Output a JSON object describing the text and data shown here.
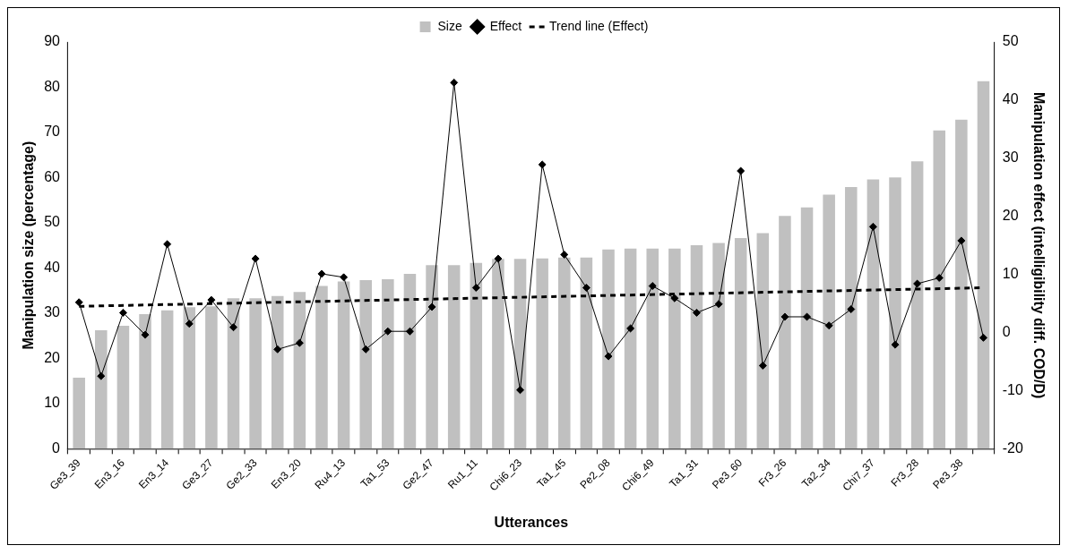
{
  "chart_data": {
    "type": "bar",
    "xlabel": "Utterances",
    "ylabel": "Manipulation size (percentage)",
    "y2label": "Manipulation effect (intelligibility diff. COD/D)",
    "categories": [
      "Ge3_39",
      null,
      "En3_16",
      null,
      "En3_14",
      null,
      "Ge3_27",
      null,
      "Ge2_33",
      null,
      "En3_20",
      null,
      "Ru4_13",
      null,
      "Ta1_53",
      null,
      "Ge2_47",
      null,
      "Ru1_11",
      null,
      "Chi6_23",
      null,
      "Ta1_45",
      null,
      "Pe2_08",
      null,
      "Chi6_49",
      null,
      "Ta1_31",
      null,
      "Pe3_60",
      null,
      "Fr3_26",
      null,
      "Ta2_34",
      null,
      "Chi7_37",
      null,
      "Fr3_28",
      null,
      "Pe3_38",
      null
    ],
    "series": [
      {
        "name": "Size",
        "type": "bar",
        "color": "#c0c0c0",
        "values": [
          15.7,
          26.2,
          27.2,
          29.8,
          30.6,
          31.3,
          31.5,
          33.3,
          33.3,
          33.8,
          34.7,
          36.0,
          37.0,
          37.3,
          37.5,
          38.7,
          40.6,
          40.6,
          41.1,
          42.0,
          42.0,
          42.1,
          42.3,
          42.3,
          44.1,
          44.3,
          44.3,
          44.3,
          45.0,
          45.5,
          46.6,
          47.7,
          51.5,
          53.4,
          56.2,
          57.9,
          59.6,
          60.0,
          63.6,
          70.4,
          72.8,
          81.3
        ]
      },
      {
        "name": "Effect",
        "type": "line",
        "axis": "y2",
        "color": "#000000",
        "marker": "diamond",
        "line_style": "solid",
        "values": [
          5.2,
          -7.5,
          3.4,
          -0.4,
          15.2,
          1.5,
          5.6,
          0.9,
          12.7,
          -2.9,
          -1.8,
          10.1,
          9.5,
          -2.9,
          0.2,
          0.2,
          4.4,
          43.0,
          7.7,
          12.7,
          -9.9,
          28.9,
          13.4,
          7.7,
          -4.1,
          0.7,
          8.0,
          5.9,
          3.4,
          4.9,
          27.8,
          -5.7,
          2.7,
          2.7,
          1.2,
          4.0,
          18.2,
          -2.1,
          8.4,
          9.4,
          15.8,
          -0.9
        ]
      },
      {
        "name": "Trend line (Effect)",
        "type": "line",
        "axis": "y2",
        "color": "#000000",
        "marker": "none",
        "line_style": "dashed",
        "values": [
          4.5,
          null,
          null,
          null,
          null,
          null,
          null,
          null,
          null,
          null,
          null,
          null,
          null,
          null,
          null,
          null,
          null,
          null,
          null,
          null,
          null,
          null,
          null,
          null,
          null,
          null,
          null,
          null,
          null,
          null,
          null,
          null,
          null,
          null,
          null,
          null,
          null,
          null,
          null,
          null,
          null,
          7.7
        ]
      }
    ],
    "ylim": [
      0,
      90
    ],
    "yticks": [
      0,
      10,
      20,
      30,
      40,
      50,
      60,
      70,
      80,
      90
    ],
    "y2lim": [
      -20,
      50
    ],
    "y2ticks": [
      -20,
      -10,
      0,
      10,
      20,
      30,
      40,
      50
    ],
    "grid": false,
    "legend": "top"
  }
}
